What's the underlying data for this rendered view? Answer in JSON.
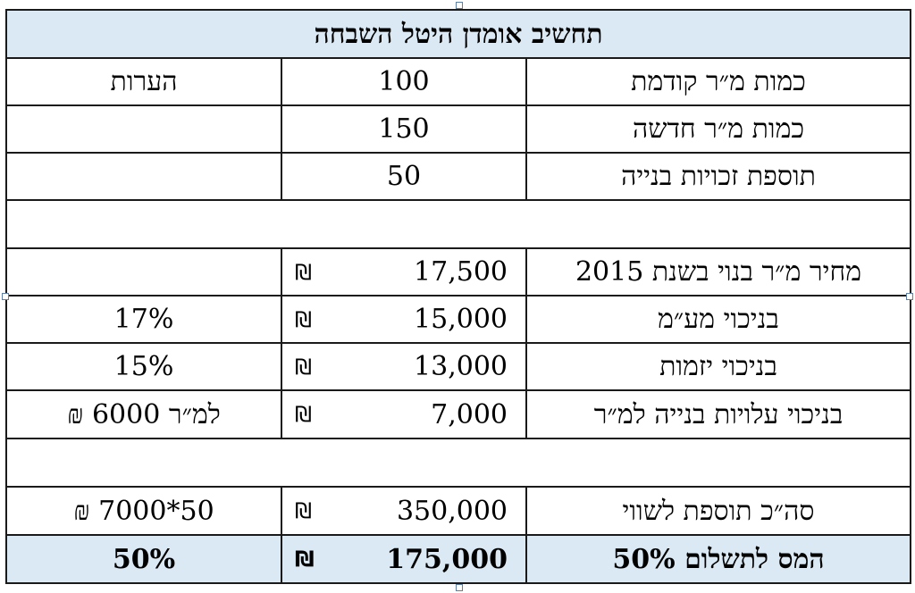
{
  "title": "תחשיב אומדן היטל השבחה",
  "rows": [
    {
      "label": "כמות מ״ר קודמת",
      "value": "100",
      "currency": "",
      "note": "הערות"
    },
    {
      "label": "כמות מ״ר חדשה",
      "value": "150",
      "currency": "",
      "note": ""
    },
    {
      "label": "תוספת זכויות בנייה",
      "value": "50",
      "currency": "",
      "note": ""
    },
    {
      "label": "מחיר מ״ר בנוי בשנת 2015",
      "value": "17,500",
      "currency": "₪",
      "note": ""
    },
    {
      "label": "בניכוי מע״מ",
      "value": "15,000",
      "currency": "₪",
      "note": "17%"
    },
    {
      "label": "בניכוי יזמות",
      "value": "13,000",
      "currency": "₪",
      "note": "15%"
    },
    {
      "label": "בניכוי עלויות בנייה למ״ר",
      "value": "7,000",
      "currency": "₪",
      "note": "למ״ר 6000 ₪"
    },
    {
      "label": "סה״כ תוספת לשווי",
      "value": "350,000",
      "currency": "₪",
      "note": "50*7000 ₪"
    },
    {
      "label": "המס לתשלום 50%",
      "value": "175,000",
      "currency": "₪",
      "note": "50%"
    }
  ],
  "colors": {
    "header_fill": "#dbe9f4",
    "border": "#1a1a1a"
  }
}
